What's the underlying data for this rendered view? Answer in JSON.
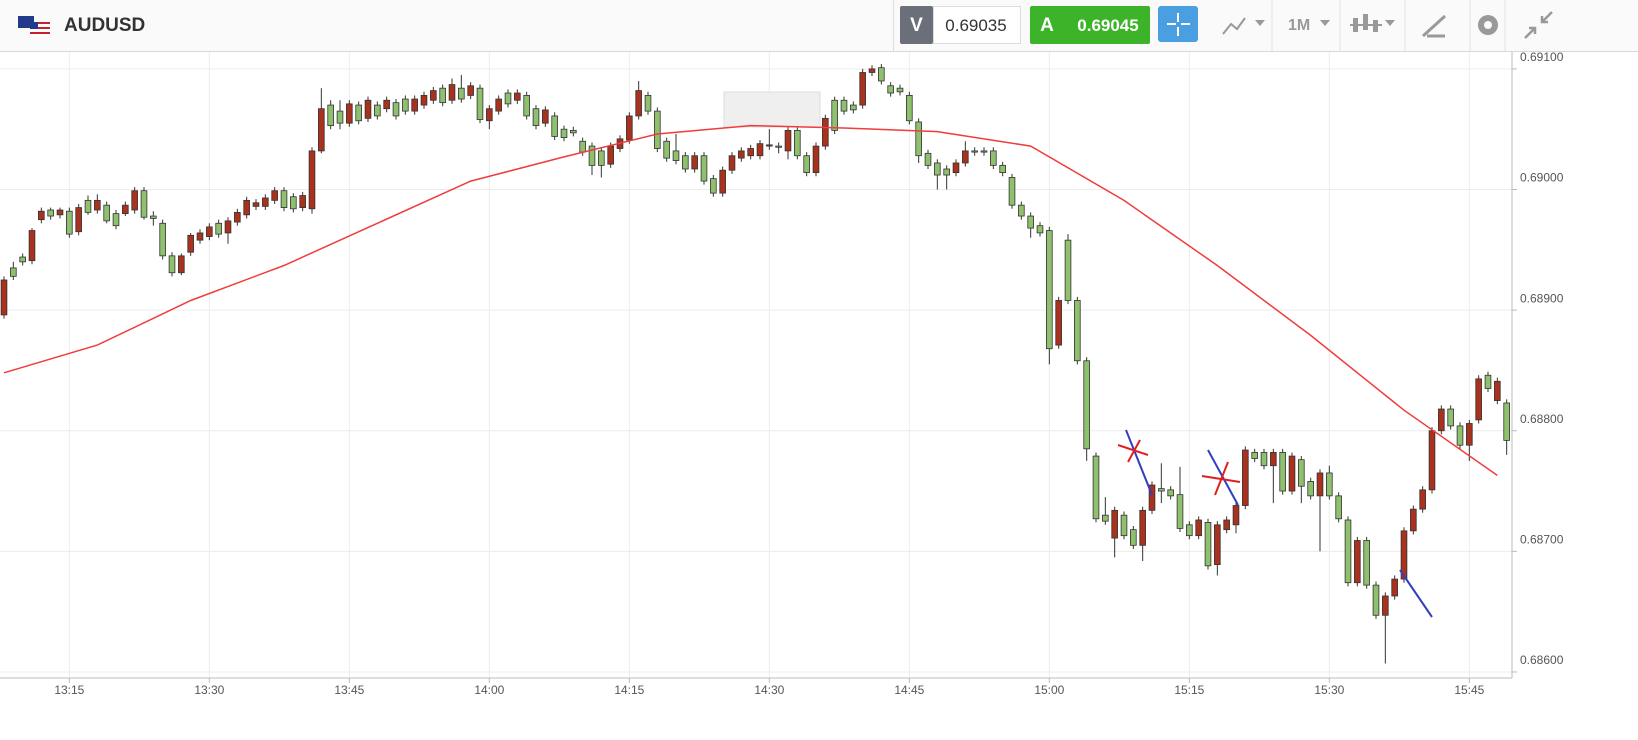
{
  "toolbar": {
    "symbol": "AUDUSD",
    "sell_label": "V",
    "sell_price": "0.69035",
    "buy_label": "A",
    "buy_price": "0.69045",
    "timeframe": "1M"
  },
  "chart_data": {
    "type": "candlestick",
    "up_color": "#a8321e",
    "down_color": "#8fc06e",
    "grid": true,
    "x": [
      "13:08",
      "13:09",
      "13:10",
      "13:11",
      "13:12",
      "13:13",
      "13:14",
      "13:15",
      "13:16",
      "13:17",
      "13:18",
      "13:19",
      "13:20",
      "13:21",
      "13:22",
      "13:23",
      "13:24",
      "13:25",
      "13:26",
      "13:27",
      "13:28",
      "13:29",
      "13:30",
      "13:31",
      "13:32",
      "13:33",
      "13:34",
      "13:35",
      "13:36",
      "13:37",
      "13:38",
      "13:39",
      "13:40",
      "13:41",
      "13:42",
      "13:43",
      "13:44",
      "13:45",
      "13:46",
      "13:47",
      "13:48",
      "13:49",
      "13:50",
      "13:51",
      "13:52",
      "13:53",
      "13:54",
      "13:55",
      "13:56",
      "13:57",
      "13:58",
      "13:59",
      "14:00",
      "14:01",
      "14:02",
      "14:03",
      "14:04",
      "14:05",
      "14:06",
      "14:07",
      "14:08",
      "14:09",
      "14:10",
      "14:11",
      "14:12",
      "14:13",
      "14:14",
      "14:15",
      "14:16",
      "14:17",
      "14:18",
      "14:19",
      "14:20",
      "14:21",
      "14:22",
      "14:23",
      "14:24",
      "14:25",
      "14:26",
      "14:27",
      "14:28",
      "14:29",
      "14:30",
      "14:31",
      "14:32",
      "14:33",
      "14:34",
      "14:35",
      "14:36",
      "14:37",
      "14:38",
      "14:39",
      "14:40",
      "14:41",
      "14:42",
      "14:43",
      "14:44",
      "14:45",
      "14:46",
      "14:47",
      "14:48",
      "14:49",
      "14:50",
      "14:51",
      "14:52",
      "14:53",
      "14:54",
      "14:55",
      "14:56",
      "14:57",
      "14:58",
      "14:59",
      "15:00",
      "15:01",
      "15:02",
      "15:03",
      "15:04",
      "15:05",
      "15:06",
      "15:07",
      "15:08",
      "15:09",
      "15:10",
      "15:11",
      "15:12",
      "15:13",
      "15:14",
      "15:15",
      "15:16",
      "15:17",
      "15:18",
      "15:19",
      "15:20",
      "15:21",
      "15:22",
      "15:23",
      "15:24",
      "15:25",
      "15:26",
      "15:27",
      "15:28",
      "15:29",
      "15:30",
      "15:31",
      "15:32",
      "15:33",
      "15:34",
      "15:35",
      "15:36",
      "15:37",
      "15:38",
      "15:39",
      "15:40",
      "15:41",
      "15:42",
      "15:43",
      "15:44",
      "15:45",
      "15:46",
      "15:47",
      "15:48",
      "15:49"
    ],
    "open": [
      0.68896,
      0.68935,
      0.68944,
      0.68941,
      0.68975,
      0.68983,
      0.68979,
      0.68982,
      0.68965,
      0.68991,
      0.68983,
      0.68987,
      0.6898,
      0.6898,
      0.68983,
      0.68999,
      0.68978,
      0.68972,
      0.68945,
      0.68931,
      0.68948,
      0.68958,
      0.68961,
      0.68972,
      0.68964,
      0.68973,
      0.68979,
      0.68986,
      0.68986,
      0.68991,
      0.68999,
      0.68994,
      0.68985,
      0.68984,
      0.69032,
      0.6907,
      0.69065,
      0.69055,
      0.6907,
      0.69059,
      0.6907,
      0.69067,
      0.69072,
      0.69075,
      0.69065,
      0.6907,
      0.69074,
      0.69084,
      0.69074,
      0.69084,
      0.69078,
      0.69084,
      0.69057,
      0.69065,
      0.6908,
      0.69074,
      0.69078,
      0.69067,
      0.69055,
      0.69061,
      0.6905,
      0.69049,
      0.6904,
      0.69036,
      0.69032,
      0.69021,
      0.69034,
      0.69041,
      0.69061,
      0.69078,
      0.69065,
      0.6904,
      0.69032,
      0.69028,
      0.69017,
      0.69028,
      0.69009,
      0.68997,
      0.69016,
      0.69026,
      0.69028,
      0.69028,
      0.69036,
      0.69036,
      0.69032,
      0.69049,
      0.69028,
      0.69014,
      0.69036,
      0.69074,
      0.69074,
      0.6907,
      0.6907,
      0.69097,
      0.69101,
      0.69086,
      0.69084,
      0.69078,
      0.69056,
      0.6903,
      0.69022,
      0.69017,
      0.69014,
      0.69022,
      0.69032,
      0.69032,
      0.69032,
      0.6902,
      0.6901,
      0.68987,
      0.68978,
      0.6897,
      0.68966,
      0.68871,
      0.68958,
      0.68908,
      0.68858,
      0.68779,
      0.6873,
      0.68711,
      0.6873,
      0.68718,
      0.68705,
      0.68734,
      0.68752,
      0.68751,
      0.68747,
      0.68722,
      0.68713,
      0.68724,
      0.68689,
      0.68718,
      0.68722,
      0.68738,
      0.68782,
      0.68782,
      0.68771,
      0.68782,
      0.6875,
      0.68776,
      0.68758,
      0.68746,
      0.68765,
      0.68746,
      0.68726,
      0.68674,
      0.68709,
      0.68672,
      0.68647,
      0.68663,
      0.68677,
      0.68717,
      0.68735,
      0.68751,
      0.688,
      0.68818,
      0.68804,
      0.68788,
      0.68809,
      0.68846,
      0.68825,
      0.68823
    ],
    "high": [
      0.68928,
      0.6894,
      0.68947,
      0.68968,
      0.68985,
      0.68985,
      0.68985,
      0.68985,
      0.68988,
      0.68995,
      0.68996,
      0.6899,
      0.68983,
      0.6899,
      0.69002,
      0.69002,
      0.68982,
      0.68975,
      0.68948,
      0.68947,
      0.68964,
      0.68967,
      0.68972,
      0.68975,
      0.68977,
      0.68984,
      0.68994,
      0.68992,
      0.68996,
      0.69002,
      0.69002,
      0.68997,
      0.68998,
      0.69035,
      0.69084,
      0.69074,
      0.69074,
      0.69074,
      0.69073,
      0.69077,
      0.69073,
      0.69077,
      0.69075,
      0.69078,
      0.69078,
      0.69081,
      0.69085,
      0.69087,
      0.69092,
      0.69095,
      0.69089,
      0.69087,
      0.6907,
      0.69078,
      0.69083,
      0.69083,
      0.69081,
      0.6907,
      0.69069,
      0.69064,
      0.69053,
      0.69052,
      0.69043,
      0.69039,
      0.69035,
      0.69039,
      0.69045,
      0.69064,
      0.6909,
      0.69081,
      0.69068,
      0.69043,
      0.69046,
      0.69031,
      0.69031,
      0.69031,
      0.69012,
      0.69019,
      0.69031,
      0.69035,
      0.69037,
      0.69041,
      0.6905,
      0.69039,
      0.69052,
      0.69052,
      0.69031,
      0.69039,
      0.69062,
      0.69077,
      0.69077,
      0.69073,
      0.691,
      0.69103,
      0.69104,
      0.69089,
      0.69087,
      0.69081,
      0.69059,
      0.69033,
      0.69025,
      0.6902,
      0.69025,
      0.6904,
      0.69035,
      0.69035,
      0.69035,
      0.69023,
      0.69013,
      0.6899,
      0.68981,
      0.68973,
      0.68969,
      0.68911,
      0.68963,
      0.68911,
      0.68861,
      0.68782,
      0.68745,
      0.68737,
      0.68733,
      0.68721,
      0.68737,
      0.68758,
      0.68773,
      0.68754,
      0.6877,
      0.68725,
      0.68729,
      0.68727,
      0.68725,
      0.68729,
      0.68741,
      0.68787,
      0.68785,
      0.68785,
      0.68785,
      0.68785,
      0.68782,
      0.68779,
      0.68761,
      0.68768,
      0.68771,
      0.68749,
      0.68729,
      0.68712,
      0.68712,
      0.68675,
      0.68666,
      0.6868,
      0.6872,
      0.68738,
      0.68754,
      0.68803,
      0.68821,
      0.68821,
      0.68807,
      0.68809,
      0.68846,
      0.68849,
      0.68844,
      0.68826
    ],
    "low": [
      0.68893,
      0.68925,
      0.68937,
      0.68938,
      0.68972,
      0.68975,
      0.68976,
      0.6896,
      0.68962,
      0.68979,
      0.6898,
      0.68972,
      0.68967,
      0.68978,
      0.6898,
      0.68975,
      0.6897,
      0.68942,
      0.68928,
      0.68929,
      0.68945,
      0.68955,
      0.68958,
      0.6896,
      0.68955,
      0.6897,
      0.68976,
      0.68983,
      0.68983,
      0.68988,
      0.68982,
      0.68981,
      0.68982,
      0.6898,
      0.6903,
      0.6905,
      0.6905,
      0.69052,
      0.69054,
      0.69056,
      0.69058,
      0.69064,
      0.69058,
      0.69062,
      0.69062,
      0.69067,
      0.69071,
      0.69069,
      0.69071,
      0.69072,
      0.69075,
      0.69055,
      0.6905,
      0.69062,
      0.69068,
      0.69071,
      0.69058,
      0.6905,
      0.69052,
      0.69041,
      0.6904,
      0.69044,
      0.69028,
      0.69012,
      0.6901,
      0.69018,
      0.69031,
      0.69038,
      0.69058,
      0.69062,
      0.69031,
      0.69023,
      0.69021,
      0.69014,
      0.69014,
      0.69004,
      0.68994,
      0.68994,
      0.69013,
      0.69023,
      0.69025,
      0.69025,
      0.69033,
      0.6903,
      0.69025,
      0.69025,
      0.69011,
      0.69011,
      0.69033,
      0.69046,
      0.69062,
      0.69063,
      0.69067,
      0.69094,
      0.69087,
      0.69077,
      0.69078,
      0.69054,
      0.69022,
      0.69017,
      0.69,
      0.69,
      0.69011,
      0.69019,
      0.69028,
      0.69028,
      0.69017,
      0.69011,
      0.68984,
      0.68975,
      0.6896,
      0.68961,
      0.68855,
      0.68868,
      0.68905,
      0.68855,
      0.68775,
      0.68724,
      0.68722,
      0.68695,
      0.6871,
      0.68702,
      0.68692,
      0.68731,
      0.6874,
      0.68743,
      0.68716,
      0.6871,
      0.6871,
      0.68685,
      0.6868,
      0.68715,
      0.68715,
      0.68735,
      0.68774,
      0.68768,
      0.6874,
      0.68747,
      0.68747,
      0.6874,
      0.68743,
      0.687,
      0.68743,
      0.68724,
      0.68671,
      0.68671,
      0.68669,
      0.68644,
      0.68607,
      0.6866,
      0.68674,
      0.68714,
      0.68732,
      0.68748,
      0.68797,
      0.68801,
      0.68785,
      0.68775,
      0.68806,
      0.68832,
      0.68822,
      0.6878
    ],
    "close": [
      0.68925,
      0.68928,
      0.6894,
      0.68966,
      0.68982,
      0.68978,
      0.68983,
      0.68963,
      0.68985,
      0.68981,
      0.68991,
      0.68974,
      0.6897,
      0.68987,
      0.68999,
      0.68977,
      0.68976,
      0.68945,
      0.68931,
      0.68945,
      0.68962,
      0.68964,
      0.68969,
      0.68963,
      0.68974,
      0.68981,
      0.68991,
      0.68989,
      0.68993,
      0.68999,
      0.68985,
      0.68984,
      0.68995,
      0.69032,
      0.69067,
      0.69053,
      0.69055,
      0.69071,
      0.69057,
      0.69074,
      0.69061,
      0.69074,
      0.69061,
      0.69065,
      0.69075,
      0.69078,
      0.69082,
      0.69072,
      0.69087,
      0.69075,
      0.69086,
      0.69058,
      0.69067,
      0.69075,
      0.69071,
      0.6908,
      0.69061,
      0.69053,
      0.69066,
      0.69044,
      0.69043,
      0.69047,
      0.69031,
      0.6902,
      0.6902,
      0.69036,
      0.69042,
      0.69061,
      0.69082,
      0.69065,
      0.69034,
      0.69026,
      0.69024,
      0.69017,
      0.69028,
      0.69007,
      0.68997,
      0.69016,
      0.69028,
      0.69032,
      0.69034,
      0.69038,
      0.69037,
      0.69035,
      0.69049,
      0.69028,
      0.69014,
      0.69036,
      0.69059,
      0.69049,
      0.69065,
      0.69066,
      0.69097,
      0.691,
      0.6909,
      0.6908,
      0.69081,
      0.69057,
      0.69028,
      0.6902,
      0.69012,
      0.69012,
      0.69022,
      0.69032,
      0.69031,
      0.69031,
      0.6902,
      0.69014,
      0.68987,
      0.68978,
      0.68968,
      0.68964,
      0.68868,
      0.68908,
      0.68908,
      0.68858,
      0.68785,
      0.68727,
      0.68725,
      0.68734,
      0.68713,
      0.68705,
      0.68734,
      0.68755,
      0.6875,
      0.68746,
      0.68719,
      0.68713,
      0.68726,
      0.68688,
      0.68722,
      0.68726,
      0.68738,
      0.68784,
      0.68777,
      0.68771,
      0.68782,
      0.6875,
      0.68779,
      0.68754,
      0.68746,
      0.68765,
      0.68746,
      0.68727,
      0.68674,
      0.68709,
      0.68672,
      0.68647,
      0.68663,
      0.68677,
      0.68717,
      0.68735,
      0.68751,
      0.688,
      0.68818,
      0.68804,
      0.68788,
      0.68806,
      0.68843,
      0.68835,
      0.68841,
      0.68792
    ],
    "ma": {
      "color": "#f03c3c",
      "x": [
        "13:08",
        "13:18",
        "13:28",
        "13:38",
        "13:48",
        "13:58",
        "14:08",
        "14:18",
        "14:28",
        "14:38",
        "14:48",
        "14:58",
        "15:08",
        "15:18",
        "15:28",
        "15:38",
        "15:48"
      ],
      "values": [
        0.68848,
        0.68871,
        0.68908,
        0.68937,
        0.68972,
        0.69007,
        0.69027,
        0.69046,
        0.69053,
        0.69051,
        0.69048,
        0.69036,
        0.68991,
        0.68937,
        0.68879,
        0.68817,
        0.68763
      ]
    },
    "xlim": [
      "13:08",
      "15:50"
    ],
    "xticks": [
      "13:15",
      "13:30",
      "13:45",
      "14:00",
      "14:15",
      "14:30",
      "14:45",
      "15:00",
      "15:15",
      "15:30",
      "15:45"
    ],
    "ylim": [
      0.68595,
      0.69114
    ],
    "yticks": [
      {
        "value": 0.686,
        "label": "0.68600"
      },
      {
        "value": 0.687,
        "label": "0.68700"
      },
      {
        "value": 0.688,
        "label": "0.68800"
      },
      {
        "value": 0.689,
        "label": "0.68900"
      },
      {
        "value": 0.69,
        "label": "0.69000"
      },
      {
        "value": 0.691,
        "label": "0.69100"
      }
    ]
  }
}
